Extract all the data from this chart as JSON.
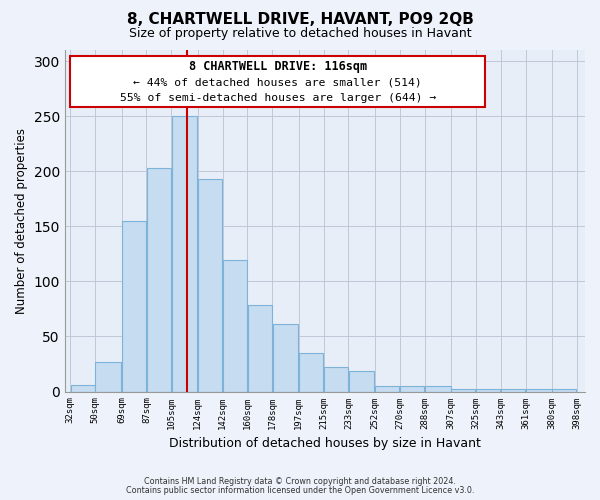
{
  "title": "8, CHARTWELL DRIVE, HAVANT, PO9 2QB",
  "subtitle": "Size of property relative to detached houses in Havant",
  "xlabel": "Distribution of detached houses by size in Havant",
  "ylabel": "Number of detached properties",
  "bar_left_edges": [
    32,
    50,
    69,
    87,
    105,
    124,
    142,
    160,
    178,
    197,
    215,
    233,
    252,
    270,
    288,
    307,
    325,
    343,
    361,
    380
  ],
  "bar_heights": [
    6,
    27,
    155,
    203,
    250,
    193,
    119,
    79,
    61,
    35,
    22,
    19,
    5,
    5,
    5,
    2,
    2,
    2,
    2,
    2
  ],
  "bar_widths": [
    18,
    19,
    18,
    18,
    19,
    18,
    18,
    18,
    19,
    18,
    18,
    19,
    18,
    18,
    19,
    18,
    18,
    18,
    19,
    18
  ],
  "tick_labels": [
    "32sqm",
    "50sqm",
    "69sqm",
    "87sqm",
    "105sqm",
    "124sqm",
    "142sqm",
    "160sqm",
    "178sqm",
    "197sqm",
    "215sqm",
    "233sqm",
    "252sqm",
    "270sqm",
    "288sqm",
    "307sqm",
    "325sqm",
    "343sqm",
    "361sqm",
    "380sqm",
    "398sqm"
  ],
  "tick_positions": [
    32,
    50,
    69,
    87,
    105,
    124,
    142,
    160,
    178,
    197,
    215,
    233,
    252,
    270,
    288,
    307,
    325,
    343,
    361,
    380,
    398
  ],
  "bar_color": "#c6dcf0",
  "bar_edge_color": "#7db3d8",
  "vline_x": 116,
  "vline_color": "#cc0000",
  "ylim": [
    0,
    310
  ],
  "xlim": [
    28,
    404
  ],
  "annotation_title": "8 CHARTWELL DRIVE: 116sqm",
  "annotation_line1": "← 44% of detached houses are smaller (514)",
  "annotation_line2": "55% of semi-detached houses are larger (644) →",
  "footer1": "Contains HM Land Registry data © Crown copyright and database right 2024.",
  "footer2": "Contains public sector information licensed under the Open Government Licence v3.0.",
  "bg_color": "#eef2fa",
  "plot_bg_color": "#e8eef8"
}
